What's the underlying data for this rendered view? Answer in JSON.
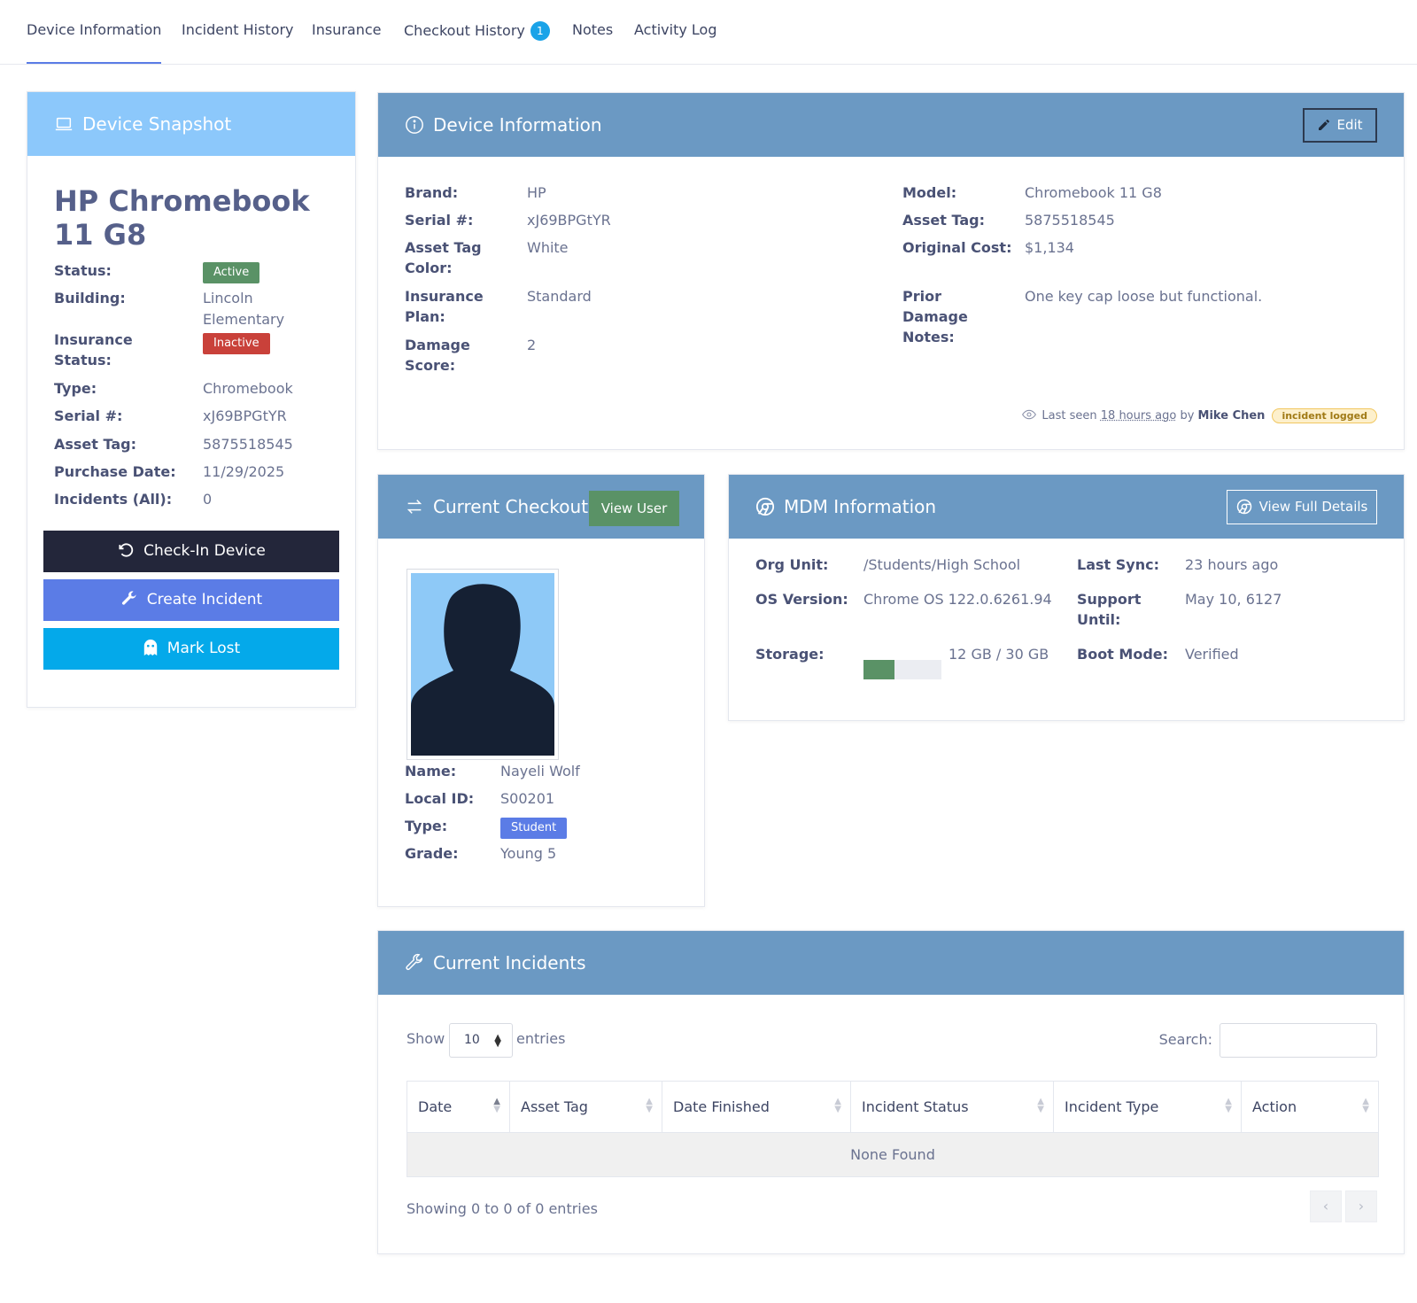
{
  "tabs": [
    {
      "label": "Device Information"
    },
    {
      "label": "Incident History"
    },
    {
      "label": "Insurance"
    },
    {
      "label": "Checkout History",
      "badge": "1"
    },
    {
      "label": "Notes"
    },
    {
      "label": "Activity Log"
    }
  ],
  "snapshot": {
    "header": "Device Snapshot",
    "device_name": "HP Chromebook 11 G8",
    "fields": {
      "status_label": "Status:",
      "status": "Active",
      "building_label": "Building:",
      "building": "Lincoln Elementary",
      "insurance_label": "Insurance Status:",
      "insurance": "Inactive",
      "type_label": "Type:",
      "type": "Chromebook",
      "serial_label": "Serial #:",
      "serial": "xJ69BPGtYR",
      "asset_label": "Asset Tag:",
      "asset": "5875518545",
      "purchase_label": "Purchase Date:",
      "purchase": "11/29/2025",
      "incidents_label": "Incidents (All):",
      "incidents": "0"
    },
    "buttons": {
      "checkin": "Check-In Device",
      "create_incident": "Create Incident",
      "mark_lost": "Mark Lost"
    }
  },
  "device_info": {
    "header": "Device Information",
    "edit": "Edit",
    "brand_label": "Brand:",
    "brand": "HP",
    "serial_label": "Serial #:",
    "serial": "xJ69BPGtYR",
    "tagcolor_label": "Asset Tag Color:",
    "tagcolor": "White",
    "plan_label": "Insurance Plan:",
    "plan": "Standard",
    "damage_label": "Damage Score:",
    "damage": "2",
    "model_label": "Model:",
    "model": "Chromebook 11 G8",
    "asset_label": "Asset Tag:",
    "asset": "5875518545",
    "cost_label": "Original Cost:",
    "cost": "$1,134",
    "prior_label": "Prior Damage Notes:",
    "prior": "One key cap loose but functional.",
    "last_seen": {
      "prefix": "Last seen",
      "time": "18 hours ago",
      "by": "by",
      "user": "Mike Chen",
      "tag": "incident logged"
    }
  },
  "checkout": {
    "header": "Current Checkout",
    "view_user": "View User",
    "name_label": "Name:",
    "name": "Nayeli Wolf",
    "localid_label": "Local ID:",
    "localid": "S00201",
    "type_label": "Type:",
    "type": "Student",
    "grade_label": "Grade:",
    "grade": "Young 5"
  },
  "mdm": {
    "header": "MDM Information",
    "full_details": "View Full Details",
    "org_label": "Org Unit:",
    "org": "/Students/High School",
    "os_label": "OS Version:",
    "os": "Chrome OS 122.0.6261.94",
    "storage_label": "Storage:",
    "storage": "12 GB / 30 GB",
    "storage_fraction": 0.4,
    "sync_label": "Last Sync:",
    "sync": "23 hours ago",
    "support_label": "Support Until:",
    "support": "May 10, 6127",
    "boot_label": "Boot Mode:",
    "boot": "Verified"
  },
  "incidents": {
    "header": "Current Incidents",
    "show": "Show",
    "page_size": "10",
    "entries": "entries",
    "search_label": "Search:",
    "columns": [
      "Date",
      "Asset Tag",
      "Date Finished",
      "Incident Status",
      "Incident Type",
      "Action"
    ],
    "empty": "None Found",
    "summary": "Showing 0 to 0 of 0 entries"
  },
  "colors": {
    "accent": "#6b99c3",
    "snapshot_head": "#8cc8fb",
    "active": "#5a9266",
    "inactive": "#c9413a",
    "checkin": "#23263a",
    "create": "#5b7ce6",
    "lost": "#04a9ea"
  }
}
